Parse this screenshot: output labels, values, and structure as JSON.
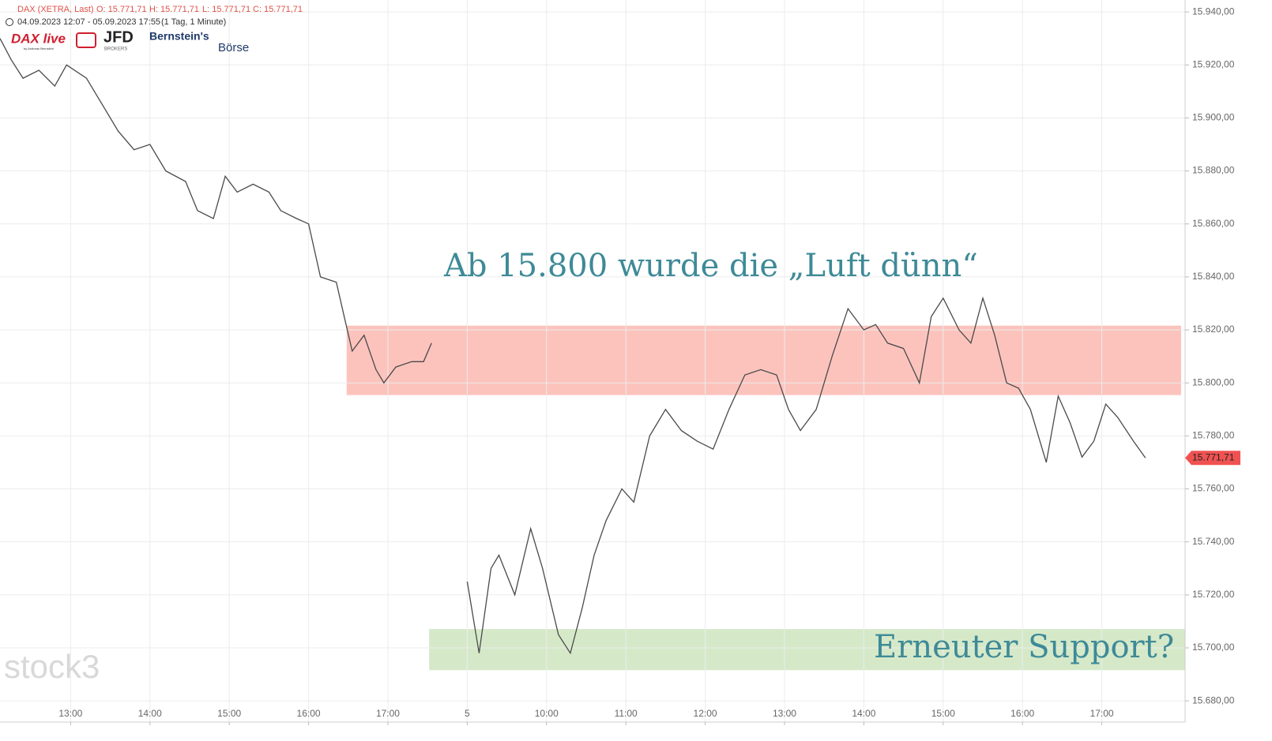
{
  "chart_data": {
    "type": "line",
    "header": {
      "symbol": "DAX (XETRA, Last)",
      "open": "O: 15.771,71",
      "high": "H: 15.771,71",
      "low": "L: 15.771,71",
      "close": "C: 15.771,71",
      "range": "04.09.2023 12:07 - 05.09.2023 17:55",
      "interval": "(1 Tag, 1 Minute)"
    },
    "logos": {
      "dax_live": "DAX live",
      "dax_live_by": "by Andreas Bernstein",
      "jfd": "JFD",
      "jfd_sub": "BROKERS",
      "bernstein": "Bernstein's",
      "boerse": "Börse",
      "watermark": "stock3"
    },
    "annotations": [
      {
        "text": "Ab 15.800 wurde die „Luft dünn“"
      },
      {
        "text": "Erneuter Support?"
      }
    ],
    "zones": [
      {
        "x": [
          16.48,
          27.0
        ],
        "y": [
          15795.4,
          15821.6
        ],
        "color": "#fcc3bd"
      },
      {
        "x": [
          17.52,
          27.05
        ],
        "y": [
          15691.6,
          15707.1
        ],
        "color": "#d5e9c9"
      }
    ],
    "last_price": {
      "value": 15771.71,
      "label": "15.771,71"
    },
    "series": [
      {
        "name": "DAX",
        "color": "#4a4a4a",
        "x": [
          12.11,
          12.25,
          12.4,
          12.6,
          12.8,
          12.95,
          13.2,
          13.4,
          13.6,
          13.8,
          14.0,
          14.2,
          14.45,
          14.6,
          14.8,
          14.95,
          15.1,
          15.3,
          15.5,
          15.65,
          15.85,
          16.0,
          16.15,
          16.35,
          16.45,
          16.55,
          16.7,
          16.85,
          16.95,
          17.1,
          17.3,
          17.45,
          17.55,
          17.78,
          18.0,
          18.15,
          18.3,
          18.4,
          18.6,
          18.8,
          18.95,
          19.15,
          19.3,
          19.45,
          19.6,
          19.75,
          19.95,
          20.1,
          20.3,
          20.5,
          20.7,
          20.9,
          21.1,
          21.3,
          21.5,
          21.7,
          21.9,
          22.05,
          22.2,
          22.4,
          22.6,
          22.8,
          23.0,
          23.15,
          23.3,
          23.5,
          23.7,
          23.85,
          24.0,
          24.2,
          24.35,
          24.5,
          24.65,
          24.8,
          24.95,
          25.1,
          25.3,
          25.45,
          25.6,
          25.75,
          25.9,
          26.05,
          26.2,
          26.4,
          26.55
        ],
        "values": [
          15930,
          15922,
          15915,
          15918,
          15912,
          15920,
          15915,
          15905,
          15895,
          15888,
          15890,
          15880,
          15876,
          15865,
          15862,
          15878,
          15872,
          15875,
          15872,
          15865,
          15862,
          15860,
          15840,
          15838,
          15825,
          15812,
          15818,
          15805,
          15800,
          15806,
          15808,
          15808,
          15815,
          null,
          15725,
          15698,
          15730,
          15735,
          15720,
          15745,
          15730,
          15705,
          15698,
          15715,
          15735,
          15748,
          15760,
          15755,
          15780,
          15790,
          15782,
          15778,
          15775,
          15790,
          15803,
          15805,
          15803,
          15790,
          15782,
          15790,
          15810,
          15828,
          15820,
          15822,
          15815,
          15813,
          15800,
          15825,
          15832,
          15820,
          15815,
          15832,
          15818,
          15800,
          15798,
          15790,
          15770,
          15795,
          15785,
          15772,
          15778,
          15792,
          15787,
          15778,
          15771.71
        ]
      }
    ],
    "xlim": [
      12.11,
      27.05
    ],
    "xticks": [
      {
        "value": 13,
        "label": "13:00"
      },
      {
        "value": 14,
        "label": "14:00"
      },
      {
        "value": 15,
        "label": "15:00"
      },
      {
        "value": 16,
        "label": "16:00"
      },
      {
        "value": 17,
        "label": "17:00"
      },
      {
        "value": 18,
        "label": "5"
      },
      {
        "value": 19,
        "label": "10:00"
      },
      {
        "value": 20,
        "label": "11:00"
      },
      {
        "value": 21,
        "label": "12:00"
      },
      {
        "value": 22,
        "label": "13:00"
      },
      {
        "value": 23,
        "label": "14:00"
      },
      {
        "value": 24,
        "label": "15:00"
      },
      {
        "value": 25,
        "label": "16:00"
      },
      {
        "value": 26,
        "label": "17:00"
      }
    ],
    "ylim": [
      15672,
      15944.5
    ],
    "yticks": [
      {
        "value": 15680,
        "label": "15.680,00"
      },
      {
        "value": 15700,
        "label": "15.700,00"
      },
      {
        "value": 15720,
        "label": "15.720,00"
      },
      {
        "value": 15740,
        "label": "15.740,00"
      },
      {
        "value": 15760,
        "label": "15.760,00"
      },
      {
        "value": 15780,
        "label": "15.780,00"
      },
      {
        "value": 15800,
        "label": "15.800,00"
      },
      {
        "value": 15820,
        "label": "15.820,00"
      },
      {
        "value": 15840,
        "label": "15.840,00"
      },
      {
        "value": 15860,
        "label": "15.860,00"
      },
      {
        "value": 15880,
        "label": "15.880,00"
      },
      {
        "value": 15900,
        "label": "15.900,00"
      },
      {
        "value": 15920,
        "label": "15.920,00"
      },
      {
        "value": 15940,
        "label": "15.940,00"
      }
    ],
    "grid": true
  }
}
